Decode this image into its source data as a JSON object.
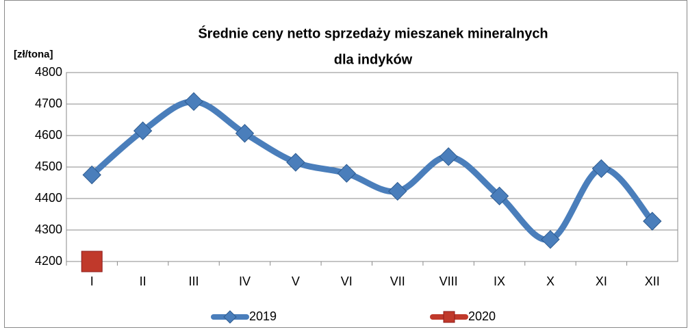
{
  "chart_data": {
    "type": "line",
    "title": [
      "Średnie ceny netto sprzedaży mieszanek mineralnych",
      "dla indyków"
    ],
    "y_label": "[zł/tona]",
    "categories": [
      "I",
      "II",
      "III",
      "IV",
      "V",
      "VI",
      "VII",
      "VIII",
      "IX",
      "X",
      "XI",
      "XII"
    ],
    "series": [
      {
        "name": "2019",
        "color": "#4a7ebb",
        "values": [
          4475,
          4615,
          4708,
          4607,
          4515,
          4480,
          4423,
          4533,
          4408,
          4270,
          4495,
          4328
        ]
      },
      {
        "name": "2020",
        "color": "#c0392b",
        "values": [
          4200,
          null,
          null,
          null,
          null,
          null,
          null,
          null,
          null,
          null,
          null,
          null
        ]
      }
    ],
    "ylim": [
      4200,
      4800
    ],
    "yticks": [
      4200,
      4300,
      4400,
      4500,
      4600,
      4700,
      4800
    ],
    "grid": true
  }
}
